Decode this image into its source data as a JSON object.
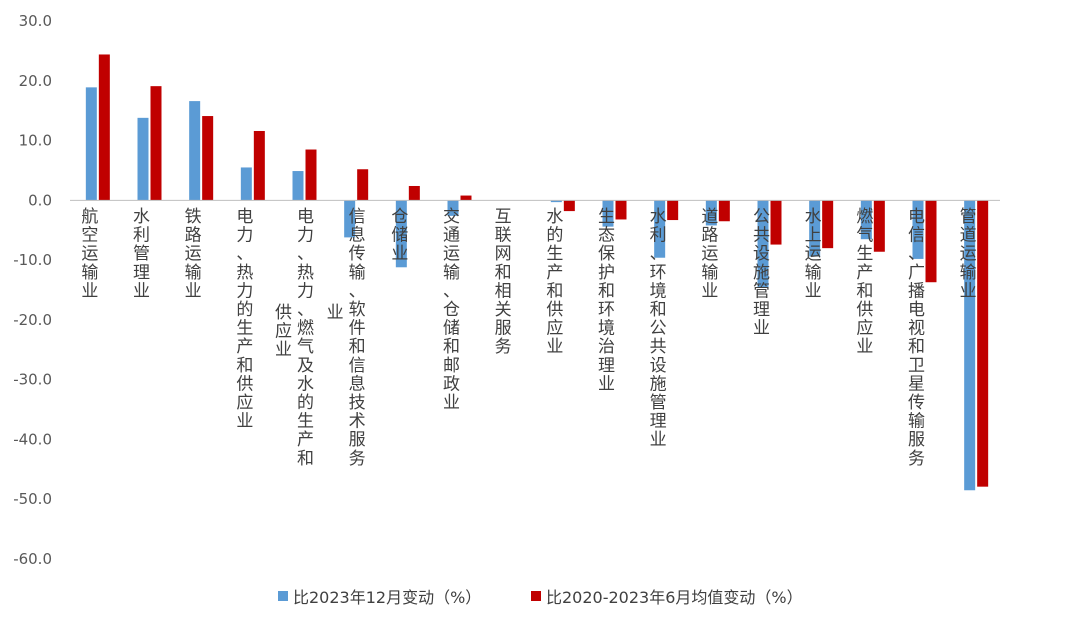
{
  "chart_data": {
    "type": "bar",
    "categories": [
      "航空运输业",
      "水利管理业",
      "铁路运输业",
      "电力、热力的生产和供应业",
      "电力、热力、燃气及水的生产和供应业",
      "信息传输、软件和信息技术服务业",
      "仓储业",
      "交通运输、仓储和邮政业",
      "互联网和相关服务",
      "水的生产和供应业",
      "生态保护和环境治理业",
      "水利、环境和公共设施管理业",
      "道路运输业",
      "公共设施管理业",
      "水上运输业",
      "燃气生产和供应业",
      "电信、广播电视和卫星传输服务",
      "管道运输业"
    ],
    "category_label_lines": [
      [
        "航空运输业"
      ],
      [
        "水利管理业"
      ],
      [
        "铁路运输业"
      ],
      [
        "电力、热力的生产和供应业"
      ],
      [
        "电力、热力、燃气及水的生产和",
        "供应业"
      ],
      [
        "信息传输、软件和信息技术服务",
        "业"
      ],
      [
        "仓储业"
      ],
      [
        "交通运输、仓储和邮政业"
      ],
      [
        "互联网和相关服务"
      ],
      [
        "水的生产和供应业"
      ],
      [
        "生态保护和环境治理业"
      ],
      [
        "水利、环境和公共设施管理业"
      ],
      [
        "道路运输业"
      ],
      [
        "公共设施管理业"
      ],
      [
        "水上运输业"
      ],
      [
        "燃气生产和供应业"
      ],
      [
        "电信、广播电视和卫星传输服务"
      ],
      [
        "管道运输业"
      ]
    ],
    "series": [
      {
        "name": "比2023年12月变动（%）",
        "color": "#5b9bd5",
        "values": [
          18.9,
          13.8,
          16.6,
          5.5,
          4.9,
          -6.2,
          -11.2,
          -2.6,
          0.0,
          -0.3,
          -4.4,
          -9.6,
          -4.2,
          -14.5,
          -9.4,
          -6.5,
          -9.8,
          -48.5
        ]
      },
      {
        "name": "比2020-2023年6月均值变动（%）",
        "color": "#c00000",
        "values": [
          24.4,
          19.1,
          14.1,
          11.6,
          8.5,
          5.2,
          2.4,
          0.8,
          0.0,
          -1.8,
          -3.2,
          -3.3,
          -3.5,
          -7.4,
          -8.0,
          -8.6,
          -13.7,
          -47.9
        ]
      }
    ],
    "ylim": [
      -60,
      30
    ],
    "yticks": [
      "30.0",
      "20.0",
      "10.0",
      "0.0",
      "-10.0",
      "-20.0",
      "-30.0",
      "-40.0",
      "-50.0",
      "-60.0"
    ],
    "title": "",
    "xlabel": "",
    "ylabel": "",
    "grid": false,
    "legend_position": "bottom"
  }
}
